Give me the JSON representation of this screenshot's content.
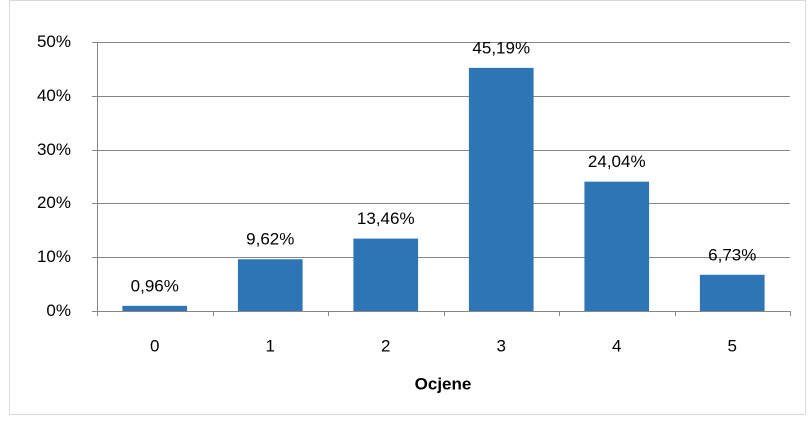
{
  "chart_data": {
    "type": "bar",
    "categories": [
      "0",
      "1",
      "2",
      "3",
      "4",
      "5"
    ],
    "values": [
      0.96,
      9.62,
      13.46,
      45.19,
      24.04,
      6.73
    ],
    "value_labels": [
      "0,96%",
      "9,62%",
      "13,46%",
      "45,19%",
      "24,04%",
      "6,73%"
    ],
    "color": "#2e75b6",
    "xlabel": "Ocjene",
    "ylim": [
      0,
      50
    ],
    "yticks": [
      {
        "value": 0,
        "label": "0%"
      },
      {
        "value": 10,
        "label": "10%"
      },
      {
        "value": 20,
        "label": "20%"
      },
      {
        "value": 30,
        "label": "30%"
      },
      {
        "value": 40,
        "label": "40%"
      },
      {
        "value": 50,
        "label": "50%"
      }
    ],
    "grid": true
  }
}
